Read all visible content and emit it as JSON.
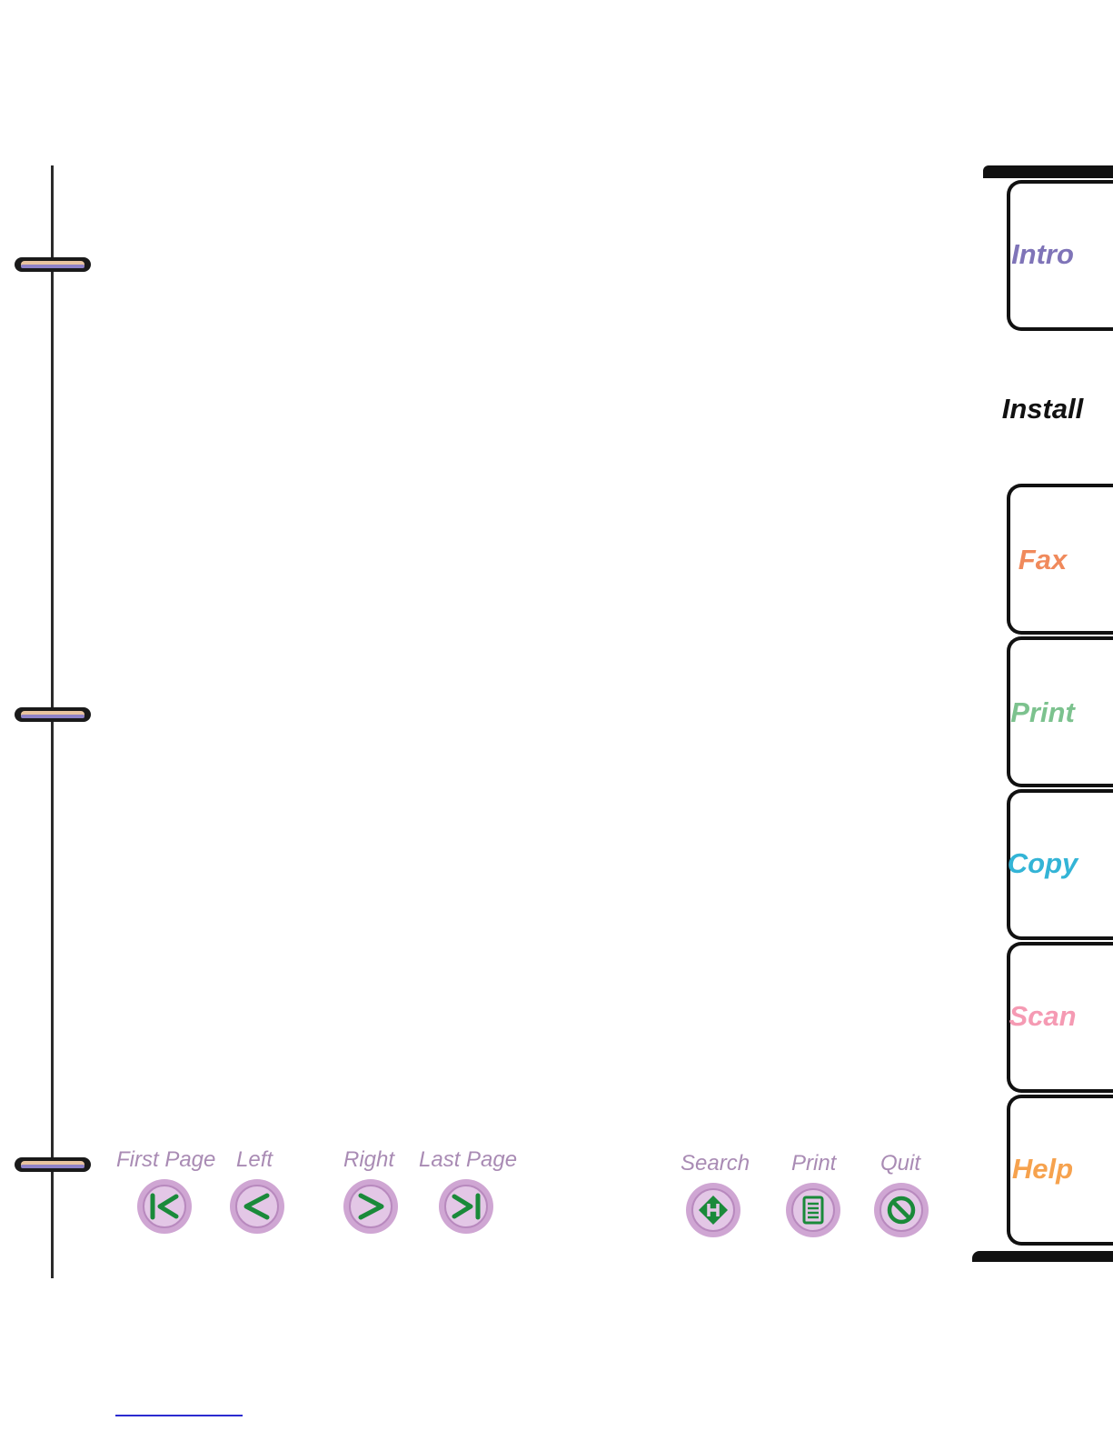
{
  "tabs": [
    {
      "label": "Intro",
      "color": "#7f74b8",
      "active": false
    },
    {
      "label": "Install",
      "color": "#111111",
      "active": true
    },
    {
      "label": "Fax",
      "color": "#f08a5c",
      "active": false
    },
    {
      "label": "Print",
      "color": "#7cc28e",
      "active": false
    },
    {
      "label": "Copy",
      "color": "#33b4d6",
      "active": false
    },
    {
      "label": "Scan",
      "color": "#f59ab3",
      "active": false
    },
    {
      "label": "Help",
      "color": "#f6a24e",
      "active": false
    }
  ],
  "navigation": {
    "first_page": {
      "label": "First Page",
      "icon": "first-page-icon"
    },
    "left": {
      "label": "Left",
      "icon": "left-arrow-icon"
    },
    "right": {
      "label": "Right",
      "icon": "right-arrow-icon"
    },
    "last_page": {
      "label": "Last Page",
      "icon": "last-page-icon"
    },
    "search": {
      "label": "Search",
      "icon": "search-icon"
    },
    "print": {
      "label": "Print",
      "icon": "print-icon"
    },
    "quit": {
      "label": "Quit",
      "icon": "quit-icon"
    }
  },
  "colors": {
    "button_label": "#a98bb4",
    "button_face": "#d9b8dd",
    "button_glyph": "#1a8a3a",
    "binding_ring": "#e9c4a0"
  }
}
